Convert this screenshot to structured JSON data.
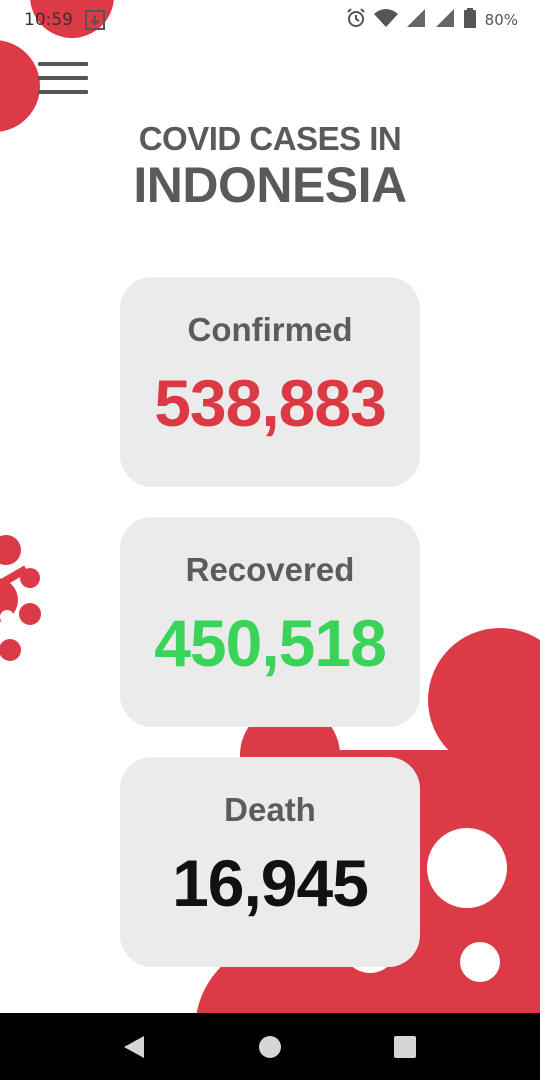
{
  "status_bar": {
    "time": "10:59",
    "battery": "80%",
    "icons": [
      "notification-icon",
      "alarm-icon",
      "wifi-icon",
      "signal-icon",
      "signal-icon",
      "battery-icon"
    ]
  },
  "header": {
    "menu_icon": "hamburger-menu-icon",
    "title_line1": "COVID CASES IN",
    "title_line2": "INDONESIA"
  },
  "cards": {
    "confirmed": {
      "label": "Confirmed",
      "value": "538,883",
      "color": "#db3a45"
    },
    "recovered": {
      "label": "Recovered",
      "value": "450,518",
      "color": "#3bd45a"
    },
    "death": {
      "label": "Death",
      "value": "16,945",
      "color": "#111111"
    }
  },
  "theme": {
    "decor_color": "#dc3a46",
    "card_background": "#ebebeb"
  },
  "nav_bar": {
    "icons": [
      "back-icon",
      "home-icon",
      "recents-icon"
    ]
  }
}
